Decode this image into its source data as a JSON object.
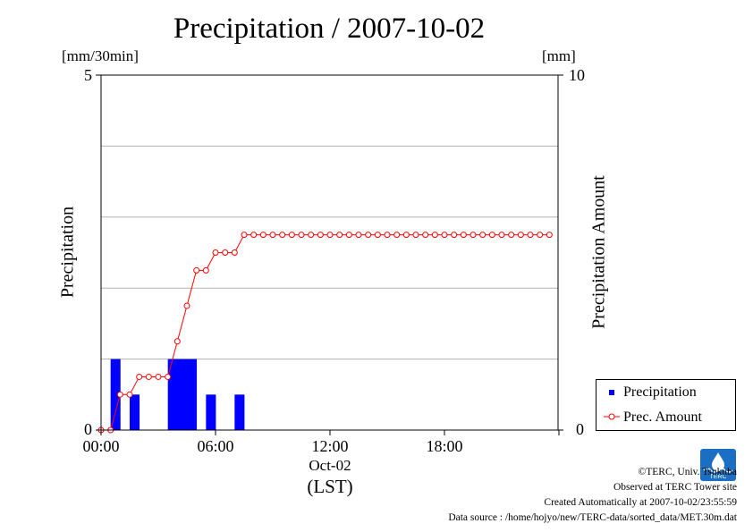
{
  "title": "Precipitation / 2007-10-02",
  "left_unit": "[mm/30min]",
  "right_unit": "[mm]",
  "left_axis_label": "Precipitation",
  "right_axis_label": "Precipitation Amount",
  "x_ticks": [
    "00:00",
    "06:00",
    "12:00",
    "18:00"
  ],
  "x_date": "Oct-02",
  "x_tz": "(LST)",
  "left_ticks": [
    "0",
    "5"
  ],
  "right_ticks": [
    "0",
    "10"
  ],
  "legend": {
    "bar_label": "Precipitation",
    "line_label": "Prec. Amount"
  },
  "credits": {
    "line1": "©TERC, Univ. Tsukuba",
    "line2": "Observed at TERC Tower site",
    "line3": "Created Automatically at 2007-10-02/23:55:59",
    "line4": "Data source : /home/hojyo/new/TERC-data/sorted_data/MET.30m.dat"
  },
  "logo_text": "TERC",
  "colors": {
    "bar": "#0000ff",
    "line": "#ff0000",
    "grid": "#b0b0b0"
  },
  "chart_data": {
    "type": "bar+line",
    "x_unit": "hours (LST)",
    "x_range": [
      0,
      24
    ],
    "left_ylim": [
      0,
      5
    ],
    "right_ylim": [
      0,
      10
    ],
    "grid": true,
    "legend_position": "bottom-right",
    "series": [
      {
        "name": "Precipitation",
        "type": "bar",
        "axis": "left",
        "x": [
          0.5,
          1.5,
          3.5,
          4.0,
          4.5,
          5.5,
          7.0
        ],
        "values": [
          1.0,
          0.5,
          1.0,
          1.0,
          1.0,
          0.5,
          0.5
        ]
      },
      {
        "name": "Prec. Amount",
        "type": "line",
        "axis": "right",
        "x": [
          0.0,
          0.5,
          1.0,
          1.5,
          2.0,
          2.5,
          3.0,
          3.5,
          4.0,
          4.5,
          5.0,
          5.5,
          6.0,
          6.5,
          7.0,
          7.5,
          8.0,
          8.5,
          9.0,
          9.5,
          10.0,
          10.5,
          11.0,
          11.5,
          12.0,
          12.5,
          13.0,
          13.5,
          14.0,
          14.5,
          15.0,
          15.5,
          16.0,
          16.5,
          17.0,
          17.5,
          18.0,
          18.5,
          19.0,
          19.5,
          20.0,
          20.5,
          21.0,
          21.5,
          22.0,
          22.5,
          23.0,
          23.5
        ],
        "values": [
          0.0,
          0.0,
          1.0,
          1.0,
          1.5,
          1.5,
          1.5,
          1.5,
          2.5,
          3.5,
          4.5,
          4.5,
          5.0,
          5.0,
          5.0,
          5.5,
          5.5,
          5.5,
          5.5,
          5.5,
          5.5,
          5.5,
          5.5,
          5.5,
          5.5,
          5.5,
          5.5,
          5.5,
          5.5,
          5.5,
          5.5,
          5.5,
          5.5,
          5.5,
          5.5,
          5.5,
          5.5,
          5.5,
          5.5,
          5.5,
          5.5,
          5.5,
          5.5,
          5.5,
          5.5,
          5.5,
          5.5,
          5.5
        ]
      }
    ]
  }
}
